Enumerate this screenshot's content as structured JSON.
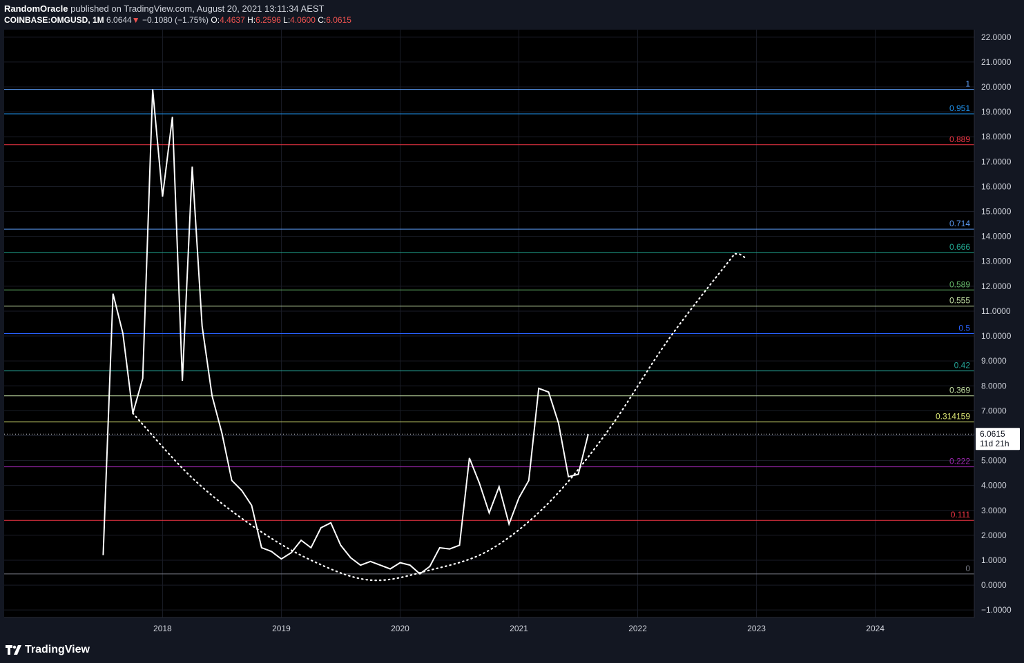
{
  "header": {
    "author": "RandomOracle",
    "published": "published on TradingView.com, August 20, 2021 13:11:34 AEST",
    "symbol": "COINBASE:OMGUSD, 1M",
    "last": "6.0644",
    "change_arrow": "▼",
    "change": "−0.1080 (−1.75%)",
    "open_label": "O:",
    "open": "4.4637",
    "high_label": "H:",
    "high": "6.2596",
    "low_label": "L:",
    "low": "4.0600",
    "close_label": "C:",
    "close": "6.0615"
  },
  "footer": {
    "brand": "TradingView",
    "brand_icon": "tradingview-logo-icon"
  },
  "colors": {
    "background": "#131722",
    "price_line": "#ffffff",
    "axis_text": "#d1d4dc",
    "change_down": "#ef5350"
  },
  "chart_data": {
    "type": "line",
    "title": "",
    "xlabel": "",
    "ylabel": "",
    "xlim": [
      "2016-09",
      "2024-11"
    ],
    "ylim": [
      -1.3,
      22.3
    ],
    "grid": true,
    "x_ticks": [
      "2018",
      "2019",
      "2020",
      "2021",
      "2022",
      "2023",
      "2024"
    ],
    "y_ticks": [
      "22.0000",
      "21.0000",
      "20.0000",
      "19.0000",
      "18.0000",
      "17.0000",
      "16.0000",
      "15.0000",
      "14.0000",
      "13.0000",
      "12.0000",
      "11.0000",
      "10.0000",
      "9.0000",
      "8.0000",
      "7.0000",
      "6.0000",
      "5.0000",
      "4.0000",
      "3.0000",
      "2.0000",
      "1.0000",
      "0.0000",
      "−1.0000"
    ],
    "series": [
      {
        "x": [
          "2017-07",
          "2017-08",
          "2017-09",
          "2017-10",
          "2017-11",
          "2017-12",
          "2018-01",
          "2018-02",
          "2018-03",
          "2018-04",
          "2018-05",
          "2018-06",
          "2018-07",
          "2018-08",
          "2018-09",
          "2018-10",
          "2018-11",
          "2018-12",
          "2019-01",
          "2019-02",
          "2019-03",
          "2019-04",
          "2019-05",
          "2019-06",
          "2019-07",
          "2019-08",
          "2019-09",
          "2019-10",
          "2019-11",
          "2019-12",
          "2020-01",
          "2020-02",
          "2020-03",
          "2020-04",
          "2020-05",
          "2020-06",
          "2020-07",
          "2020-08",
          "2020-09",
          "2020-10",
          "2020-11",
          "2020-12",
          "2021-01",
          "2021-02",
          "2021-03",
          "2021-04",
          "2021-05",
          "2021-06",
          "2021-07",
          "2021-08"
        ],
        "y": [
          1.2,
          11.7,
          10.1,
          6.9,
          8.3,
          19.9,
          15.6,
          18.8,
          8.2,
          16.8,
          10.4,
          7.6,
          6.1,
          4.2,
          3.8,
          3.2,
          1.5,
          1.35,
          1.05,
          1.3,
          1.8,
          1.5,
          2.3,
          2.5,
          1.6,
          1.1,
          0.8,
          0.95,
          0.8,
          0.65,
          0.9,
          0.8,
          0.45,
          0.75,
          1.5,
          1.45,
          1.6,
          5.1,
          4.1,
          2.9,
          3.95,
          2.45,
          3.5,
          4.2,
          7.9,
          7.75,
          6.5,
          4.35,
          4.45,
          6.06
        ]
      }
    ],
    "curve_annotation": {
      "style": "dotted",
      "x": [
        "2017-10",
        "2018-04",
        "2018-10",
        "2019-04",
        "2019-10",
        "2020-04",
        "2020-10",
        "2021-04",
        "2021-10",
        "2022-04",
        "2022-10",
        "2022-11",
        "2022-12"
      ],
      "y": [
        6.9,
        4.3,
        2.4,
        1.0,
        0.2,
        0.6,
        1.4,
        3.3,
        6.2,
        9.8,
        12.9,
        13.3,
        13.1
      ]
    },
    "last_price": {
      "value": 6.0615,
      "label": "6.0615",
      "countdown": "11d 21h"
    },
    "fib_levels": [
      {
        "label": "1",
        "value": 19.9,
        "color": "#5b9cf6"
      },
      {
        "label": "0.951",
        "value": 18.92,
        "color": "#2196f3"
      },
      {
        "label": "0.889",
        "value": 17.68,
        "color": "#f23645"
      },
      {
        "label": "0.714",
        "value": 14.29,
        "color": "#5b9cf6"
      },
      {
        "label": "0.666",
        "value": 13.35,
        "color": "#22ab94"
      },
      {
        "label": "0.589",
        "value": 11.85,
        "color": "#66bb6a"
      },
      {
        "label": "0.555",
        "value": 11.2,
        "color": "#c5e1a5"
      },
      {
        "label": "0.5",
        "value": 10.1,
        "color": "#2962ff"
      },
      {
        "label": "0.42",
        "value": 8.6,
        "color": "#26a69a"
      },
      {
        "label": "0.369",
        "value": 7.6,
        "color": "#c5e1a5"
      },
      {
        "label": "0.314159",
        "value": 6.55,
        "color": "#dce775"
      },
      {
        "label": "0.222",
        "value": 4.75,
        "color": "#9c27b0"
      },
      {
        "label": "0.111",
        "value": 2.6,
        "color": "#f23645"
      },
      {
        "label": "0",
        "value": 0.45,
        "color": "#787b86"
      }
    ]
  }
}
